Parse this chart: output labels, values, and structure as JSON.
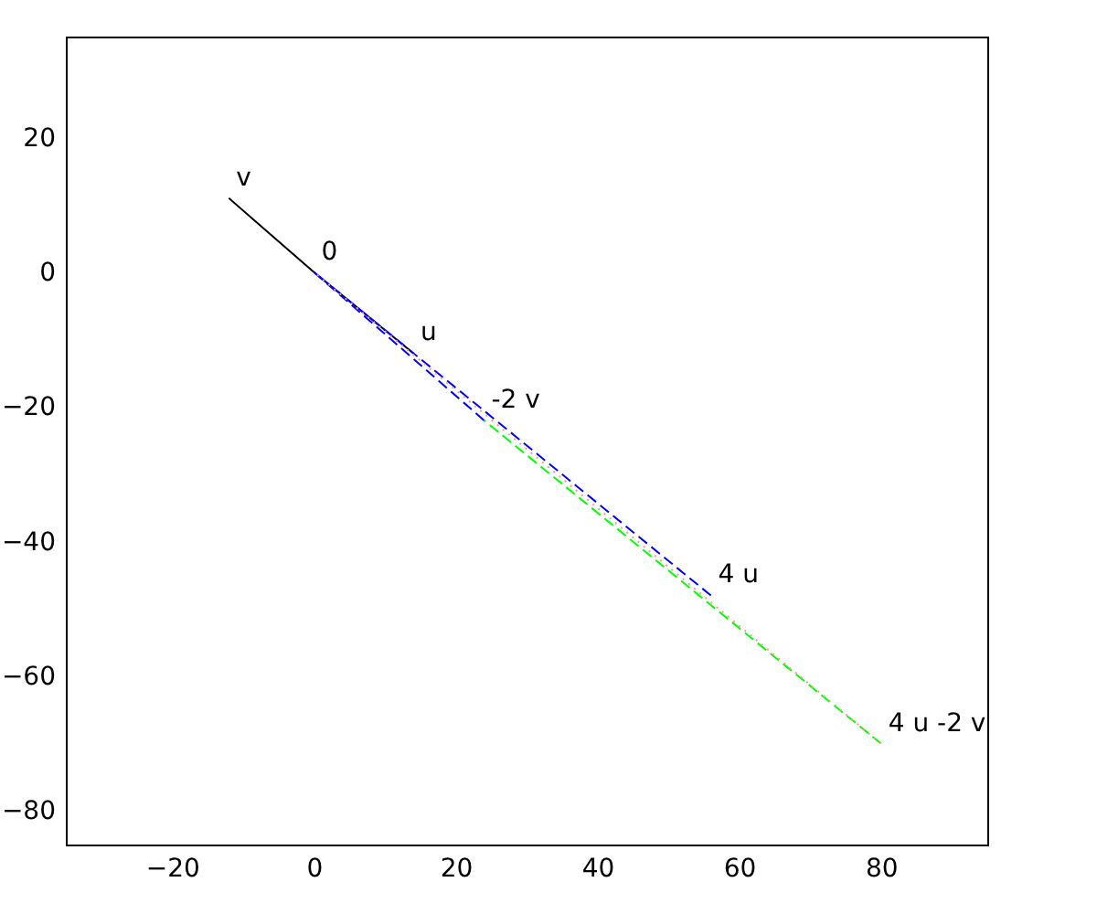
{
  "chart_data": {
    "type": "line",
    "xlim": [
      -35,
      95
    ],
    "ylim": [
      -85,
      35
    ],
    "xticks": [
      -20,
      0,
      20,
      40,
      60,
      80
    ],
    "yticks": [
      -80,
      -60,
      -40,
      -20,
      0,
      20
    ],
    "grid": false,
    "marker": "none",
    "series": [
      {
        "color": "#000000",
        "line_style": "solid",
        "x": [
          -12,
          0,
          14
        ],
        "values": [
          11,
          0,
          -12
        ]
      },
      {
        "color": "#0000ff",
        "line_style": "dashed",
        "x": [
          0,
          24
        ],
        "values": [
          0,
          -22
        ]
      },
      {
        "color": "#0000ff",
        "line_style": "dashed",
        "x": [
          0,
          56
        ],
        "values": [
          0,
          -48
        ]
      },
      {
        "color": "#00ff00",
        "line_style": "dashed",
        "x": [
          24,
          80
        ],
        "values": [
          -22,
          -70
        ]
      },
      {
        "color": "#ff9999",
        "line_style": "dotted",
        "x": [
          0,
          80
        ],
        "values": [
          0,
          -70
        ]
      }
    ],
    "annotations": [
      {
        "text": "v",
        "x": -12,
        "y": 11
      },
      {
        "text": "0",
        "x": 0,
        "y": 0
      },
      {
        "text": "u",
        "x": 14,
        "y": -12
      },
      {
        "text": "-2 v",
        "x": 24,
        "y": -22
      },
      {
        "text": "4 u",
        "x": 56,
        "y": -48
      },
      {
        "text": "4 u -2 v",
        "x": 80,
        "y": -70
      }
    ]
  }
}
